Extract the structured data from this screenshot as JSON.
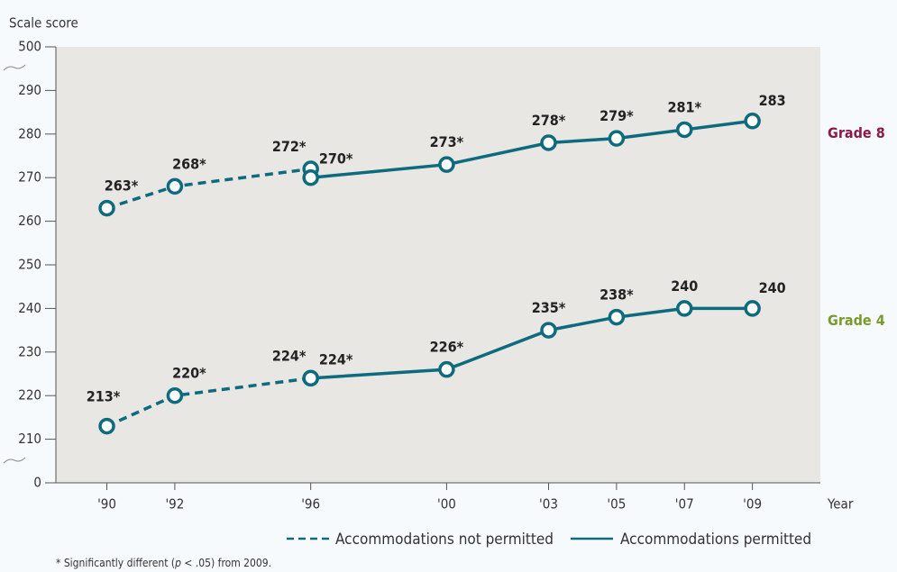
{
  "chart_data": {
    "type": "line",
    "y_axis_label": "Scale score",
    "x_axis_label": "Year",
    "x": [
      1990,
      1992,
      1996,
      2000,
      2003,
      2005,
      2007,
      2009
    ],
    "xlim": [
      1988.5,
      2011
    ],
    "xticks": [
      {
        "value": 1990,
        "label": "'90"
      },
      {
        "value": 1992,
        "label": "'92"
      },
      {
        "value": 1996,
        "label": "'96"
      },
      {
        "value": 2000,
        "label": "'00"
      },
      {
        "value": 2003,
        "label": "'03"
      },
      {
        "value": 2005,
        "label": "'05"
      },
      {
        "value": 2007,
        "label": "'07"
      },
      {
        "value": 2009,
        "label": "'09"
      }
    ],
    "ylim": [
      0,
      500
    ],
    "yticks": [
      0,
      210,
      220,
      230,
      240,
      250,
      260,
      270,
      280,
      290,
      500
    ],
    "axis_breaks": true,
    "line_color": "#0e6b7e",
    "legend": [
      "Accommodations not permitted",
      "Accommodations permitted"
    ],
    "series": [
      {
        "name": "Grade 8",
        "color": "#8b1a4a",
        "not_permitted": [
          263,
          268,
          272,
          null,
          null,
          null,
          null,
          null
        ],
        "not_permitted_labels": [
          "263*",
          "268*",
          "272*",
          null,
          null,
          null,
          null,
          null
        ],
        "permitted": [
          null,
          null,
          270,
          273,
          278,
          279,
          281,
          283
        ],
        "permitted_labels": [
          null,
          null,
          "270*",
          "273*",
          "278*",
          "279*",
          "281*",
          "283"
        ]
      },
      {
        "name": "Grade 4",
        "color": "#7a9a2e",
        "not_permitted": [
          213,
          220,
          224,
          null,
          null,
          null,
          null,
          null
        ],
        "not_permitted_labels": [
          "213*",
          "220*",
          "224*",
          null,
          null,
          null,
          null,
          null
        ],
        "permitted": [
          null,
          null,
          224,
          226,
          235,
          238,
          240,
          240
        ],
        "permitted_labels": [
          null,
          null,
          "224*",
          "226*",
          "235*",
          "238*",
          "240",
          "240"
        ]
      }
    ],
    "footnote": [
      "* Significantly different (",
      "p",
      " < .05) from 2009."
    ]
  }
}
